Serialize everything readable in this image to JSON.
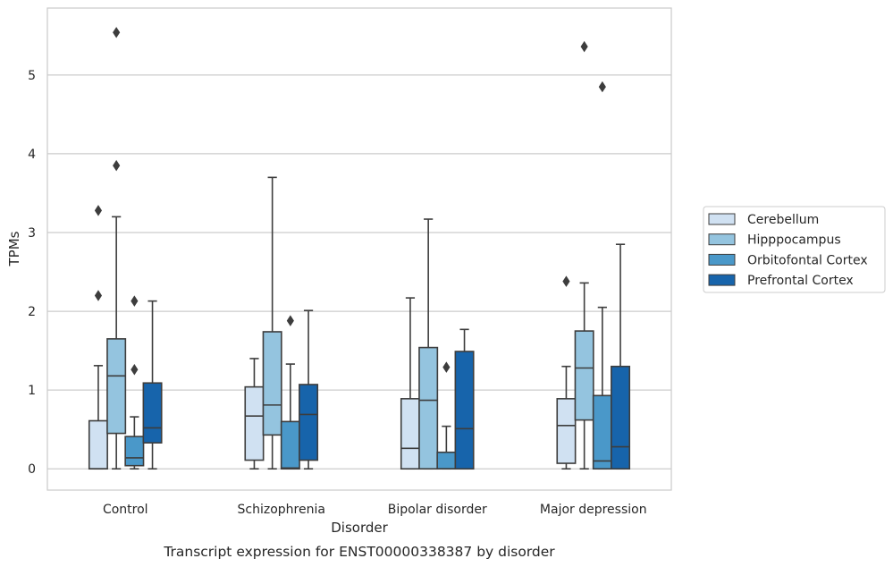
{
  "chart_data": {
    "type": "box",
    "caption": "Transcript expression for ENST00000338387 by disorder",
    "xlabel": "Disorder",
    "ylabel": "TPMs",
    "ylim": [
      -0.27,
      5.85
    ],
    "yticks": [
      0,
      1,
      2,
      3,
      4,
      5
    ],
    "grid": "horizontal",
    "legend_position": "right",
    "categories": [
      "Control",
      "Schizophrenia",
      "Bipolar disorder",
      "Major depression"
    ],
    "series": [
      {
        "name": "Cerebellum",
        "color": "#d0e1f2",
        "boxes": [
          {
            "whisker_low": 0,
            "q1": 0,
            "median": 0,
            "q3": 0.61,
            "whisker_high": 1.31,
            "outliers": [
              2.2,
              3.28
            ]
          },
          {
            "whisker_low": 0,
            "q1": 0.11,
            "median": 0.67,
            "q3": 1.04,
            "whisker_high": 1.4,
            "outliers": []
          },
          {
            "whisker_low": 0,
            "q1": 0,
            "median": 0.26,
            "q3": 0.89,
            "whisker_high": 2.17,
            "outliers": []
          },
          {
            "whisker_low": 0,
            "q1": 0.07,
            "median": 0.55,
            "q3": 0.89,
            "whisker_high": 1.3,
            "outliers": [
              2.38
            ]
          }
        ]
      },
      {
        "name": "Hipppocampus",
        "color": "#94c4df",
        "boxes": [
          {
            "whisker_low": 0,
            "q1": 0.45,
            "median": 1.18,
            "q3": 1.65,
            "whisker_high": 3.2,
            "outliers": [
              3.85,
              5.54
            ]
          },
          {
            "whisker_low": 0,
            "q1": 0.43,
            "median": 0.81,
            "q3": 1.74,
            "whisker_high": 3.7,
            "outliers": []
          },
          {
            "whisker_low": 0,
            "q1": 0,
            "median": 0.87,
            "q3": 1.54,
            "whisker_high": 3.17,
            "outliers": []
          },
          {
            "whisker_low": 0,
            "q1": 0.62,
            "median": 1.28,
            "q3": 1.75,
            "whisker_high": 2.36,
            "outliers": [
              5.36
            ]
          }
        ]
      },
      {
        "name": "Orbitofontal Cortex",
        "color": "#4a98c9",
        "boxes": [
          {
            "whisker_low": 0,
            "q1": 0.04,
            "median": 0.14,
            "q3": 0.41,
            "whisker_high": 0.66,
            "outliers": [
              1.26,
              2.13
            ]
          },
          {
            "whisker_low": 0,
            "q1": 0,
            "median": 0.01,
            "q3": 0.6,
            "whisker_high": 1.33,
            "outliers": [
              1.88
            ]
          },
          {
            "whisker_low": 0,
            "q1": 0,
            "median": 0,
            "q3": 0.21,
            "whisker_high": 0.54,
            "outliers": [
              1.29
            ]
          },
          {
            "whisker_low": 0,
            "q1": 0,
            "median": 0.1,
            "q3": 0.93,
            "whisker_high": 2.05,
            "outliers": [
              4.85
            ]
          }
        ]
      },
      {
        "name": "Prefrontal Cortex",
        "color": "#1764ab",
        "boxes": [
          {
            "whisker_low": 0,
            "q1": 0.33,
            "median": 0.52,
            "q3": 1.09,
            "whisker_high": 2.13,
            "outliers": []
          },
          {
            "whisker_low": 0,
            "q1": 0.11,
            "median": 0.69,
            "q3": 1.07,
            "whisker_high": 2.01,
            "outliers": []
          },
          {
            "whisker_low": 0,
            "q1": 0,
            "median": 0.51,
            "q3": 1.49,
            "whisker_high": 1.77,
            "outliers": []
          },
          {
            "whisker_low": 0,
            "q1": 0,
            "median": 0.28,
            "q3": 1.3,
            "whisker_high": 2.85,
            "outliers": []
          }
        ]
      }
    ]
  }
}
